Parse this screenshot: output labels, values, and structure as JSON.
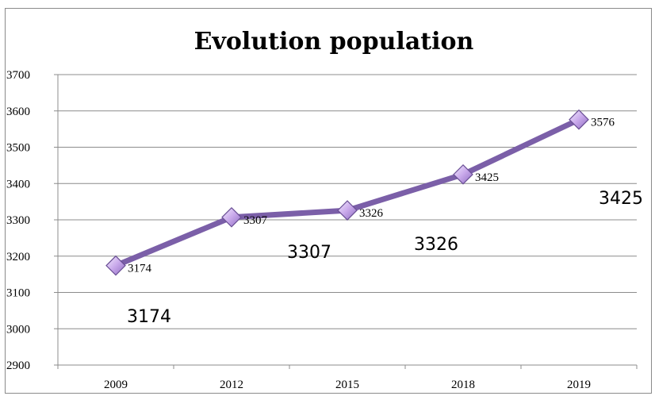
{
  "chart_data": {
    "type": "line",
    "title": "Evolution population",
    "categories": [
      "2009",
      "2012",
      "2015",
      "2018",
      "2019"
    ],
    "series": [
      {
        "values": [
          3174,
          3307,
          3326,
          3425,
          3576
        ]
      }
    ],
    "data_labels": [
      "3174",
      "3307",
      "3326",
      "3425",
      "3576"
    ],
    "ylim": [
      2900,
      3700
    ],
    "yticks": [
      2900,
      3000,
      3100,
      3200,
      3300,
      3400,
      3500,
      3600,
      3700
    ],
    "ytick_labels": [
      "2900",
      "3000",
      "3100",
      "3200",
      "3300",
      "3400",
      "3500",
      "3600",
      "3700"
    ],
    "grid": true,
    "legend": "none",
    "line_color": "#7b5fa8",
    "marker_color": "#c8a8ea",
    "marker_shape": "diamond",
    "extra_labels": [
      "3174",
      "3307",
      "3326",
      "3425"
    ]
  }
}
